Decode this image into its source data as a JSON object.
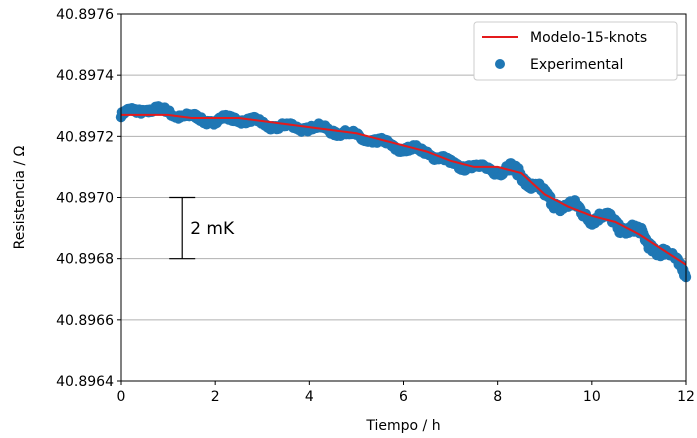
{
  "chart_data": {
    "type": "scatter",
    "title": "",
    "xlabel": "Tiempo / h",
    "ylabel": "Resistencia / Ω",
    "xlim": [
      0,
      12
    ],
    "ylim": [
      40.8964,
      40.8976
    ],
    "x_ticks": [
      "0",
      "2",
      "4",
      "6",
      "8",
      "10",
      "12"
    ],
    "y_ticks": [
      "40.8964",
      "40.8966",
      "40.8968",
      "40.8970",
      "40.8972",
      "40.8974",
      "40.8976"
    ],
    "grid": "horizontal",
    "legend_position": "top-right",
    "colors": {
      "model": "#e41a1c",
      "experimental": "#1f77b4"
    },
    "series": [
      {
        "name": "Modelo-15-knots",
        "kind": "line",
        "x": [
          0,
          0.5,
          1,
          1.5,
          2,
          2.5,
          3,
          3.5,
          4,
          4.5,
          5,
          5.5,
          6,
          6.5,
          7,
          7.5,
          8,
          8.5,
          9,
          9.5,
          10,
          10.5,
          11,
          11.5,
          12
        ],
        "y": [
          40.89727,
          40.89727,
          40.89727,
          40.89726,
          40.89726,
          40.89726,
          40.89725,
          40.89724,
          40.89723,
          40.89722,
          40.89721,
          40.89719,
          40.89717,
          40.89715,
          40.89712,
          40.8971,
          40.8971,
          40.89708,
          40.89701,
          40.89697,
          40.89694,
          40.89692,
          40.89688,
          40.89683,
          40.89678
        ]
      },
      {
        "name": "Experimental",
        "kind": "scatter",
        "x": [
          0,
          0.5,
          1,
          1.5,
          2,
          2.5,
          3,
          3.5,
          4,
          4.5,
          5,
          5.5,
          6,
          6.5,
          7,
          7.5,
          8,
          8.5,
          9,
          9.5,
          10,
          10.5,
          11,
          11.5,
          12
        ],
        "y": [
          40.89727,
          40.89729,
          40.89728,
          40.89726,
          40.89725,
          40.89726,
          40.89724,
          40.89723,
          40.89723,
          40.89722,
          40.8972,
          40.89718,
          40.89716,
          40.89715,
          40.89711,
          40.8971,
          40.89709,
          40.89708,
          40.897,
          40.89697,
          40.89694,
          40.89692,
          40.89688,
          40.89682,
          40.89677
        ]
      }
    ],
    "annotation": {
      "text": "2 mK",
      "x": 1.3,
      "y_low": 40.8968,
      "y_high": 40.897
    }
  }
}
